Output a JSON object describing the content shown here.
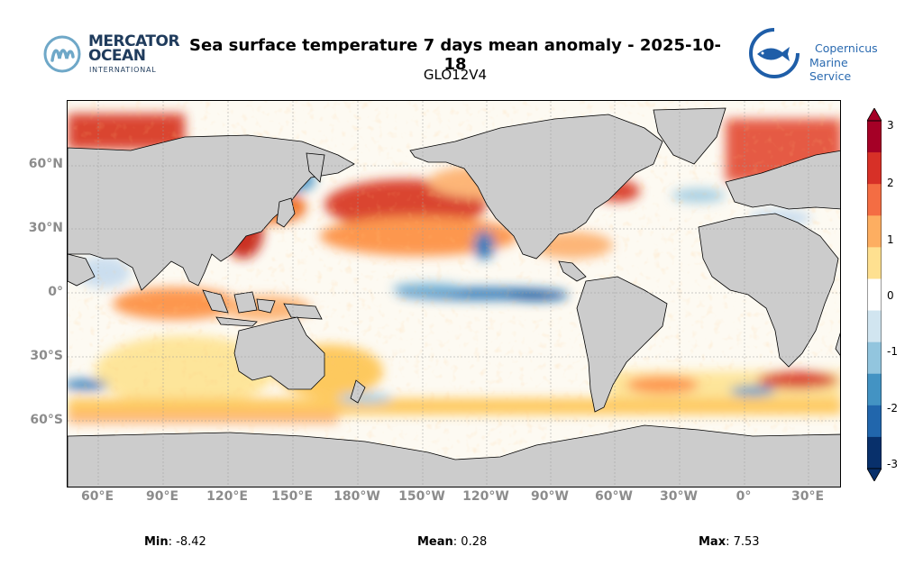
{
  "header": {
    "title": "Sea surface temperature 7 days mean anomaly - 2025-10-18",
    "subtitle": "GLO12V4"
  },
  "logos": {
    "left": {
      "line1": "MERCATOR",
      "line2": "OCEAN",
      "line3": "INTERNATIONAL",
      "icon": "mercator-ocean-icon"
    },
    "right": {
      "line1": "Copernicus",
      "line2": "Marine Service",
      "icon": "copernicus-fish-icon"
    }
  },
  "map": {
    "projection": "plate-carree",
    "lat_labels": [
      "60°N",
      "30°N",
      "0°",
      "30°S",
      "60°S"
    ],
    "lon_labels": [
      "60°E",
      "90°E",
      "120°E",
      "150°E",
      "180°W",
      "150°W",
      "120°W",
      "90°W",
      "60°W",
      "30°W",
      "0°",
      "30°E"
    ],
    "land_color": "#cccccc",
    "gridlines": true
  },
  "colorbar": {
    "ticks": [
      "3",
      "2",
      "1",
      "0",
      "-1",
      "-2",
      "-3"
    ],
    "colors": [
      "#08306b",
      "#2166ac",
      "#4393c3",
      "#92c5de",
      "#d1e5f0",
      "#ffffff",
      "#fee090",
      "#fdae61",
      "#f46d43",
      "#d73027",
      "#a50026"
    ],
    "range": [
      -3,
      3
    ]
  },
  "stats": {
    "min_label": "Min",
    "min_value": ": -8.42",
    "mean_label": "Mean",
    "mean_value": ": 0.28",
    "max_label": "Max",
    "max_value": ": 7.53"
  }
}
